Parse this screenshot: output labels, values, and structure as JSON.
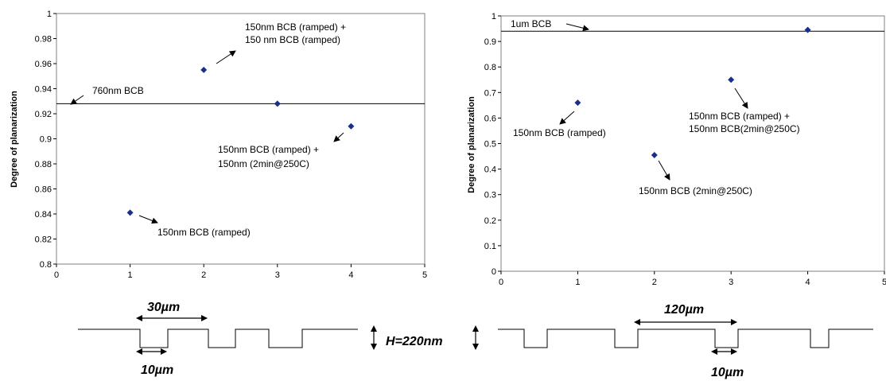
{
  "chart_data": [
    {
      "type": "scatter",
      "ylabel": "Degree of planarization",
      "xlim": [
        0,
        5
      ],
      "ylim": [
        0.8,
        1
      ],
      "x_ticks": [
        0,
        1,
        2,
        3,
        4,
        5
      ],
      "y_ticks": [
        0.8,
        0.82,
        0.84,
        0.86,
        0.88,
        0.9,
        0.92,
        0.94,
        0.96,
        0.98,
        1
      ],
      "points": [
        {
          "x": 1,
          "y": 0.841
        },
        {
          "x": 2,
          "y": 0.955
        },
        {
          "x": 3,
          "y": 0.928
        },
        {
          "x": 4,
          "y": 0.91
        }
      ],
      "reference_line": {
        "y": 0.928,
        "label": "760nm BCB"
      },
      "annotations": [
        {
          "lines": [
            "150nm BCB (ramped)"
          ]
        },
        {
          "lines": [
            "150nm BCB (ramped) +",
            "150 nm BCB (ramped)"
          ]
        },
        {
          "lines": [
            "150nm BCB (ramped) +",
            "150nm (2min@250C)"
          ]
        }
      ],
      "grid": false,
      "marker_color": "#1a2f8a"
    },
    {
      "type": "scatter",
      "ylabel": "Degree of planarization",
      "xlim": [
        0,
        5
      ],
      "ylim": [
        0,
        1
      ],
      "x_ticks": [
        0,
        1,
        2,
        3,
        4,
        5
      ],
      "y_ticks": [
        0,
        0.1,
        0.2,
        0.3,
        0.4,
        0.5,
        0.6,
        0.7,
        0.8,
        0.9,
        1
      ],
      "points": [
        {
          "x": 1,
          "y": 0.66
        },
        {
          "x": 2,
          "y": 0.455
        },
        {
          "x": 3,
          "y": 0.75
        },
        {
          "x": 4,
          "y": 0.945
        }
      ],
      "reference_line": {
        "y": 0.94,
        "label": "1um BCB"
      },
      "annotations": [
        {
          "lines": [
            "150nm BCB (ramped)"
          ]
        },
        {
          "lines": [
            "150nm BCB (2min@250C)"
          ]
        },
        {
          "lines": [
            "150nm BCB (ramped) +",
            "150nm BCB(2min@250C)"
          ]
        }
      ],
      "grid": false,
      "marker_color": "#1a2f8a"
    }
  ],
  "profile_labels": {
    "left_pitch": "30µm",
    "left_width": "10µm",
    "right_pitch": "120µm",
    "right_width": "10µm",
    "height": "H=220nm"
  }
}
